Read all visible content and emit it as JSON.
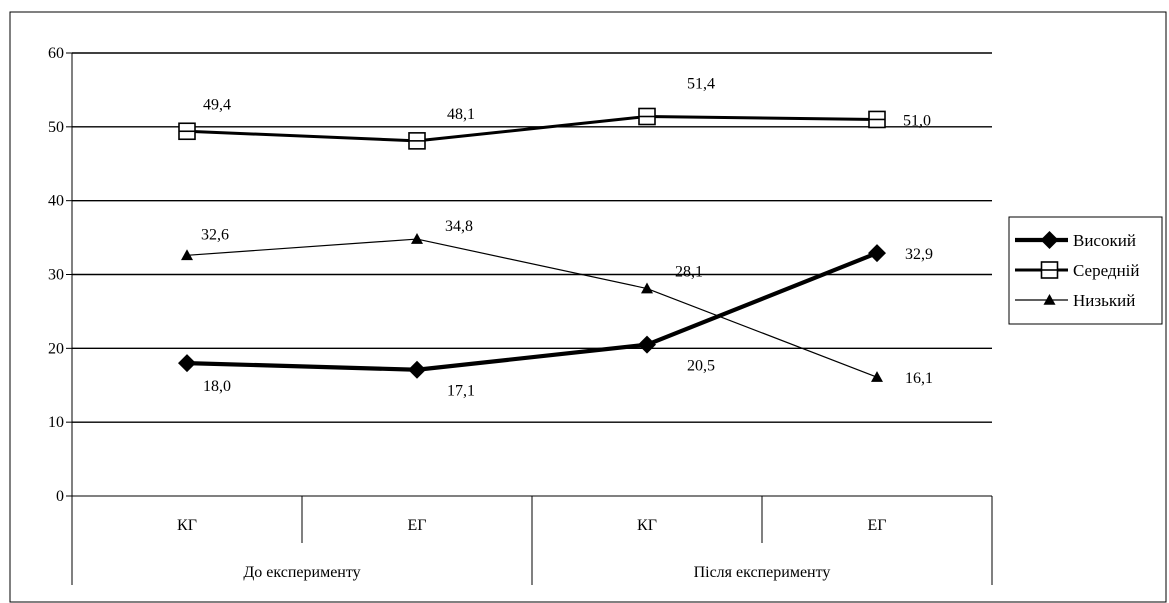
{
  "chart_data": {
    "type": "line",
    "title": "",
    "xlabel": "",
    "ylabel": "",
    "ylim": [
      0,
      60
    ],
    "yticks": [
      0,
      10,
      20,
      30,
      40,
      50,
      60
    ],
    "grid": true,
    "legend_position": "right",
    "categories": [
      "КГ",
      "ЕГ",
      "КГ",
      "ЕГ"
    ],
    "category_groups": [
      {
        "label": "До експерименту",
        "span": [
          0,
          1
        ]
      },
      {
        "label": "Після експерименту",
        "span": [
          2,
          3
        ]
      }
    ],
    "series": [
      {
        "name": "Високий",
        "values": [
          18.0,
          17.1,
          20.5,
          32.9
        ],
        "labels": [
          "18,0",
          "17,1",
          "20,5",
          "32,9"
        ],
        "marker": "diamond",
        "color": "#000000"
      },
      {
        "name": "Середній",
        "values": [
          49.4,
          48.1,
          51.4,
          51.0
        ],
        "labels": [
          "49,4",
          "48,1",
          "51,4",
          "51,0"
        ],
        "marker": "square-open",
        "color": "#000000"
      },
      {
        "name": "Низький",
        "values": [
          32.6,
          34.8,
          28.1,
          16.1
        ],
        "labels": [
          "32,6",
          "34,8",
          "28,1",
          "16,1"
        ],
        "marker": "triangle",
        "color": "#000000"
      }
    ]
  }
}
